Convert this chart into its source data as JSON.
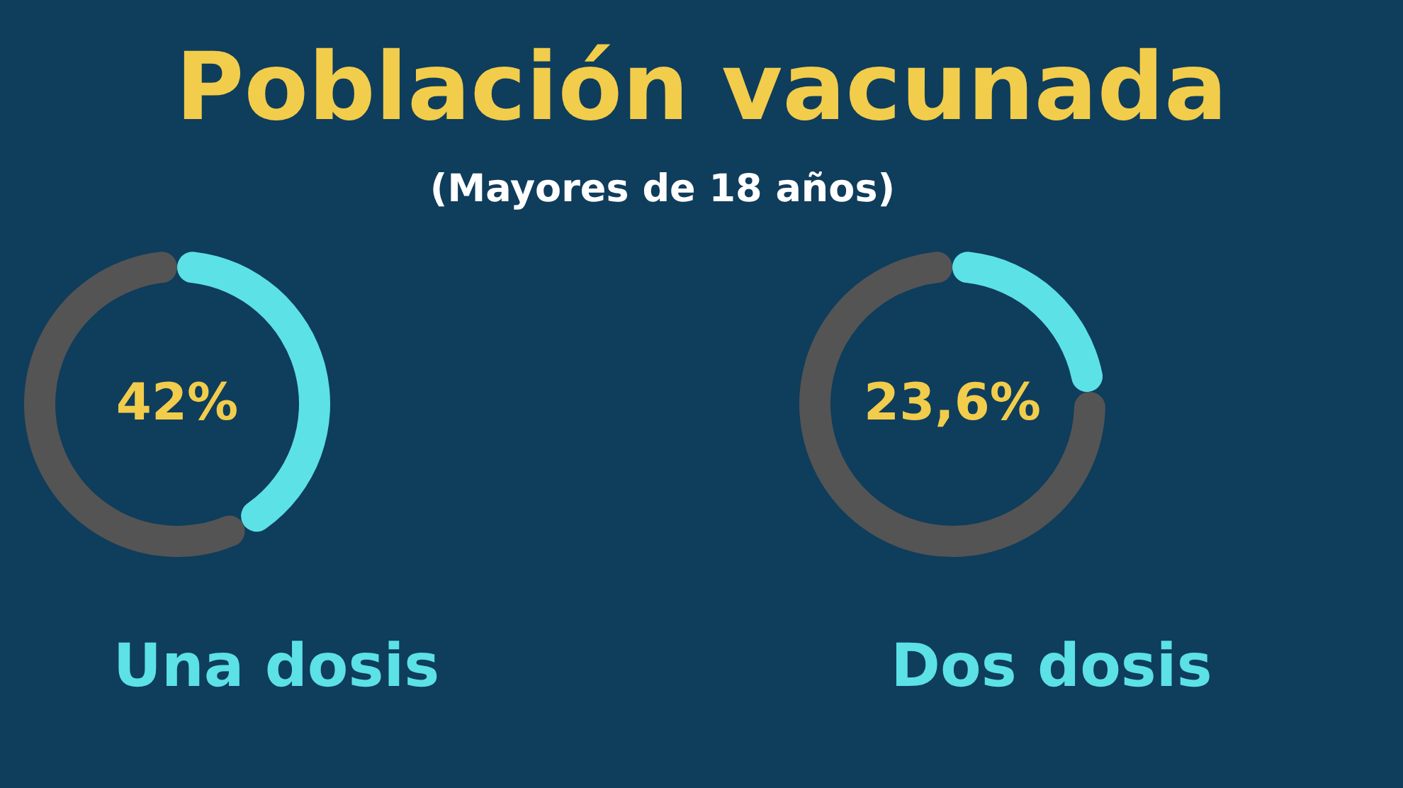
{
  "chart_data": [
    {
      "type": "donut",
      "title": "Población vacunada",
      "subtitle": "(Mayores de 18 años)",
      "xlabel": "Una dosis",
      "categories": [
        null,
        null
      ],
      "values": [
        42,
        58
      ],
      "colors": [
        "#5ce1e6",
        "#545454"
      ],
      "value_labels": [
        "42%",
        null
      ]
    },
    {
      "type": "donut",
      "xlabel": "Dos dosis",
      "categories": [
        null,
        null
      ],
      "values": [
        23.6,
        76.4
      ],
      "colors": [
        "#5ce1e6",
        "#545454"
      ],
      "value_labels": [
        "23,6%",
        null
      ]
    }
  ]
}
